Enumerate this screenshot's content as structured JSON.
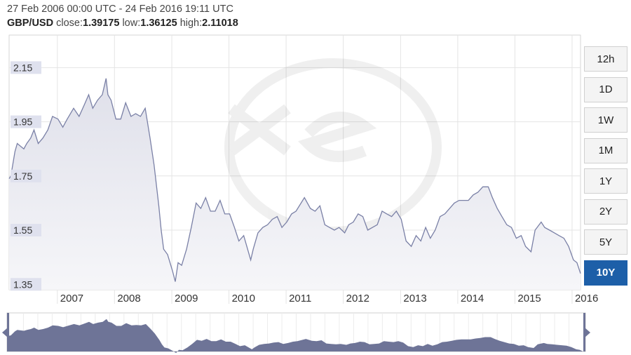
{
  "header": {
    "date_range": "27 Feb 2006 00:00 UTC - 24 Feb 2016 19:11 UTC",
    "pair": "GBP/USD",
    "close_label": "close:",
    "close_value": "1.39175",
    "low_label": "low:",
    "low_value": "1.36125",
    "high_label": "high:",
    "high_value": "2.11018"
  },
  "range_buttons": [
    {
      "label": "12h",
      "active": false
    },
    {
      "label": "1D",
      "active": false
    },
    {
      "label": "1W",
      "active": false
    },
    {
      "label": "1M",
      "active": false
    },
    {
      "label": "1Y",
      "active": false
    },
    {
      "label": "2Y",
      "active": false
    },
    {
      "label": "5Y",
      "active": false
    },
    {
      "label": "10Y",
      "active": true
    }
  ],
  "colors": {
    "line": "#7a80a6",
    "fill_top": "#dfe0ea",
    "fill_bottom": "#f6f6f9",
    "ytick_bg": "#dfe1ee",
    "active_button": "#1d5fa8",
    "navigator_fill": "#6e7497"
  },
  "chart_data": {
    "type": "area",
    "title": "",
    "xlabel": "",
    "ylabel": "",
    "ylim": [
      1.33,
      2.27
    ],
    "xlim": [
      "2006-02-27",
      "2016-02-24"
    ],
    "yticks": [
      "1.35",
      "1.55",
      "1.75",
      "1.95",
      "2.15"
    ],
    "xticks": [
      "2007",
      "2008",
      "2009",
      "2010",
      "2011",
      "2012",
      "2013",
      "2014",
      "2015",
      "2016"
    ],
    "grid": true,
    "series": [
      {
        "values_x": [
          "2006-02-27",
          "2006-03-10",
          "2006-04-05",
          "2006-04-20",
          "2006-05-10",
          "2006-06-01",
          "2006-06-20",
          "2006-07-15",
          "2006-08-05",
          "2006-09-01",
          "2006-10-01",
          "2006-11-01",
          "2006-12-01",
          "2007-01-05",
          "2007-02-05",
          "2007-03-05",
          "2007-04-15",
          "2007-05-20",
          "2007-06-20",
          "2007-07-20",
          "2007-08-15",
          "2007-09-15",
          "2007-10-15",
          "2007-11-08",
          "2007-11-20",
          "2007-12-10",
          "2008-01-10",
          "2008-02-10",
          "2008-03-12",
          "2008-04-15",
          "2008-05-15",
          "2008-06-15",
          "2008-07-15",
          "2008-08-15",
          "2008-09-10",
          "2008-10-10",
          "2008-10-25",
          "2008-11-10",
          "2008-12-05",
          "2009-01-05",
          "2009-01-23",
          "2009-02-10",
          "2009-03-05",
          "2009-04-05",
          "2009-05-05",
          "2009-06-05",
          "2009-07-05",
          "2009-08-05",
          "2009-09-05",
          "2009-10-05",
          "2009-11-05",
          "2009-12-05",
          "2010-01-05",
          "2010-02-05",
          "2010-03-05",
          "2010-04-05",
          "2010-05-20",
          "2010-06-05",
          "2010-07-05",
          "2010-08-05",
          "2010-09-05",
          "2010-10-05",
          "2010-11-05",
          "2010-12-05",
          "2011-01-05",
          "2011-02-05",
          "2011-03-05",
          "2011-04-28",
          "2011-06-05",
          "2011-07-05",
          "2011-08-05",
          "2011-09-05",
          "2011-10-05",
          "2011-11-05",
          "2011-12-05",
          "2012-01-10",
          "2012-02-05",
          "2012-03-05",
          "2012-04-05",
          "2012-05-05",
          "2012-06-05",
          "2012-07-05",
          "2012-08-05",
          "2012-09-05",
          "2012-10-05",
          "2012-11-05",
          "2012-12-05",
          "2013-01-05",
          "2013-02-05",
          "2013-03-10",
          "2013-04-10",
          "2013-05-10",
          "2013-06-10",
          "2013-07-10",
          "2013-08-10",
          "2013-09-10",
          "2013-10-10",
          "2013-11-10",
          "2013-12-10",
          "2014-01-10",
          "2014-02-10",
          "2014-03-10",
          "2014-04-10",
          "2014-05-10",
          "2014-06-10",
          "2014-07-15",
          "2014-08-10",
          "2014-09-10",
          "2014-10-10",
          "2014-11-10",
          "2014-12-10",
          "2015-01-10",
          "2015-02-10",
          "2015-03-10",
          "2015-04-14",
          "2015-05-10",
          "2015-06-18",
          "2015-07-10",
          "2015-08-10",
          "2015-09-10",
          "2015-10-10",
          "2015-11-10",
          "2015-12-10",
          "2016-01-10",
          "2016-02-01",
          "2016-02-24"
        ],
        "values": [
          1.74,
          1.75,
          1.84,
          1.87,
          1.86,
          1.85,
          1.87,
          1.89,
          1.92,
          1.87,
          1.89,
          1.92,
          1.97,
          1.96,
          1.93,
          1.96,
          2.0,
          1.97,
          2.01,
          2.05,
          2.0,
          2.03,
          2.05,
          2.11,
          2.05,
          2.03,
          1.96,
          1.96,
          2.02,
          1.97,
          1.98,
          1.97,
          2.0,
          1.89,
          1.79,
          1.64,
          1.55,
          1.48,
          1.46,
          1.4,
          1.36,
          1.43,
          1.42,
          1.48,
          1.56,
          1.65,
          1.63,
          1.67,
          1.62,
          1.62,
          1.66,
          1.61,
          1.61,
          1.56,
          1.51,
          1.53,
          1.44,
          1.48,
          1.54,
          1.56,
          1.57,
          1.59,
          1.6,
          1.56,
          1.58,
          1.61,
          1.62,
          1.67,
          1.63,
          1.62,
          1.64,
          1.57,
          1.56,
          1.55,
          1.56,
          1.54,
          1.57,
          1.58,
          1.61,
          1.6,
          1.55,
          1.56,
          1.57,
          1.62,
          1.61,
          1.6,
          1.62,
          1.59,
          1.51,
          1.49,
          1.53,
          1.51,
          1.56,
          1.52,
          1.55,
          1.6,
          1.61,
          1.63,
          1.65,
          1.66,
          1.66,
          1.66,
          1.68,
          1.69,
          1.71,
          1.71,
          1.67,
          1.63,
          1.6,
          1.57,
          1.56,
          1.52,
          1.53,
          1.49,
          1.47,
          1.55,
          1.58,
          1.56,
          1.55,
          1.54,
          1.53,
          1.52,
          1.49,
          1.44,
          1.43,
          1.39
        ]
      }
    ]
  }
}
